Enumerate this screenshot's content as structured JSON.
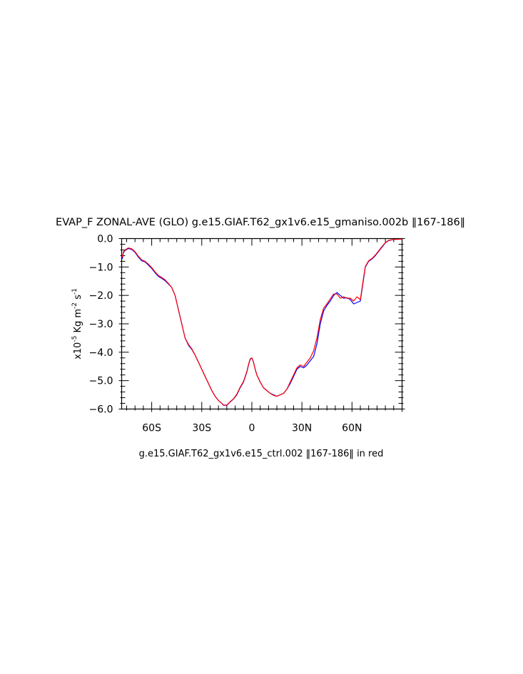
{
  "chart_data": {
    "type": "line",
    "title": "EVAP_F ZONAL-AVE (GLO) g.e15.GIAF.T62_gx1v6.e15_gmaniso.002b ‖167-186‖",
    "subtitle": "g.e15.GIAF.T62_gx1v6.e15_ctrl.002 ‖167-186‖ in red",
    "ylabel": {
      "prefix": "x10",
      "exp1": "-5",
      "mid": " Kg m",
      "exp2": "-2",
      "mid2": " s",
      "exp3": "-1"
    },
    "xlim": [
      -78,
      90
    ],
    "ylim": [
      -6.0,
      0.0
    ],
    "xticks": [
      {
        "value": -60,
        "label": "60S"
      },
      {
        "value": -30,
        "label": "30S"
      },
      {
        "value": 0,
        "label": "0"
      },
      {
        "value": 30,
        "label": "30N"
      },
      {
        "value": 60,
        "label": "60N"
      }
    ],
    "yticks": [
      {
        "value": 0.0,
        "label": "0.0"
      },
      {
        "value": -1.0,
        "label": "-1.0"
      },
      {
        "value": -2.0,
        "label": "-2.0"
      },
      {
        "value": -3.0,
        "label": "-3.0"
      },
      {
        "value": -4.0,
        "label": "-4.0"
      },
      {
        "value": -5.0,
        "label": "-5.0"
      },
      {
        "value": -6.0,
        "label": "-6.0"
      }
    ],
    "series": [
      {
        "color": "#0000ff",
        "points": [
          [
            -78,
            -0.65
          ],
          [
            -77.5,
            -0.7
          ],
          [
            -77,
            -0.5
          ],
          [
            -76,
            -0.42
          ],
          [
            -74,
            -0.35
          ],
          [
            -72,
            -0.38
          ],
          [
            -70,
            -0.48
          ],
          [
            -68,
            -0.65
          ],
          [
            -66,
            -0.78
          ],
          [
            -64,
            -0.82
          ],
          [
            -62,
            -0.93
          ],
          [
            -60,
            -1.05
          ],
          [
            -58,
            -1.2
          ],
          [
            -56,
            -1.33
          ],
          [
            -54,
            -1.4
          ],
          [
            -52,
            -1.48
          ],
          [
            -50,
            -1.6
          ],
          [
            -48,
            -1.72
          ],
          [
            -46,
            -2.0
          ],
          [
            -44,
            -2.5
          ],
          [
            -42,
            -3.0
          ],
          [
            -40,
            -3.5
          ],
          [
            -38,
            -3.75
          ],
          [
            -36,
            -3.9
          ],
          [
            -34,
            -4.1
          ],
          [
            -32,
            -4.35
          ],
          [
            -30,
            -4.6
          ],
          [
            -28,
            -4.85
          ],
          [
            -26,
            -5.1
          ],
          [
            -24,
            -5.35
          ],
          [
            -22,
            -5.55
          ],
          [
            -20,
            -5.7
          ],
          [
            -18,
            -5.8
          ],
          [
            -17,
            -5.87
          ],
          [
            -15,
            -5.87
          ],
          [
            -13,
            -5.75
          ],
          [
            -11,
            -5.65
          ],
          [
            -9,
            -5.5
          ],
          [
            -7,
            -5.25
          ],
          [
            -5,
            -5.05
          ],
          [
            -3,
            -4.7
          ],
          [
            -2,
            -4.45
          ],
          [
            -1,
            -4.25
          ],
          [
            0,
            -4.2
          ],
          [
            1,
            -4.35
          ],
          [
            2,
            -4.6
          ],
          [
            3,
            -4.8
          ],
          [
            5,
            -5.05
          ],
          [
            7,
            -5.25
          ],
          [
            9,
            -5.35
          ],
          [
            11,
            -5.45
          ],
          [
            13,
            -5.5
          ],
          [
            15,
            -5.55
          ],
          [
            17,
            -5.5
          ],
          [
            19,
            -5.45
          ],
          [
            21,
            -5.3
          ],
          [
            23,
            -5.1
          ],
          [
            25,
            -4.85
          ],
          [
            27,
            -4.6
          ],
          [
            29,
            -4.5
          ],
          [
            31,
            -4.55
          ],
          [
            33,
            -4.45
          ],
          [
            35,
            -4.3
          ],
          [
            37,
            -4.15
          ],
          [
            39,
            -3.7
          ],
          [
            41,
            -3.0
          ],
          [
            43,
            -2.55
          ],
          [
            45,
            -2.35
          ],
          [
            47,
            -2.2
          ],
          [
            49,
            -2.0
          ],
          [
            51,
            -1.9
          ],
          [
            53,
            -2.0
          ],
          [
            55,
            -2.1
          ],
          [
            57,
            -2.08
          ],
          [
            59,
            -2.15
          ],
          [
            61,
            -2.3
          ],
          [
            63,
            -2.25
          ],
          [
            65,
            -2.2
          ],
          [
            66,
            -1.8
          ],
          [
            67,
            -1.4
          ],
          [
            68,
            -1.0
          ],
          [
            70,
            -0.8
          ],
          [
            72,
            -0.72
          ],
          [
            74,
            -0.6
          ],
          [
            76,
            -0.45
          ],
          [
            78,
            -0.3
          ],
          [
            80,
            -0.15
          ],
          [
            82,
            -0.07
          ],
          [
            85,
            -0.03
          ],
          [
            90,
            -0.02
          ]
        ]
      },
      {
        "color": "#ff0000",
        "points": [
          [
            -78,
            -0.6
          ],
          [
            -77.5,
            -0.65
          ],
          [
            -77,
            -0.47
          ],
          [
            -76,
            -0.4
          ],
          [
            -74,
            -0.33
          ],
          [
            -72,
            -0.36
          ],
          [
            -70,
            -0.46
          ],
          [
            -68,
            -0.62
          ],
          [
            -66,
            -0.75
          ],
          [
            -64,
            -0.8
          ],
          [
            -62,
            -0.9
          ],
          [
            -60,
            -1.02
          ],
          [
            -58,
            -1.17
          ],
          [
            -56,
            -1.3
          ],
          [
            -54,
            -1.37
          ],
          [
            -52,
            -1.45
          ],
          [
            -50,
            -1.58
          ],
          [
            -48,
            -1.72
          ],
          [
            -46,
            -2.0
          ],
          [
            -44,
            -2.5
          ],
          [
            -42,
            -3.0
          ],
          [
            -40,
            -3.5
          ],
          [
            -38,
            -3.72
          ],
          [
            -36,
            -3.88
          ],
          [
            -34,
            -4.1
          ],
          [
            -32,
            -4.35
          ],
          [
            -30,
            -4.6
          ],
          [
            -28,
            -4.85
          ],
          [
            -26,
            -5.1
          ],
          [
            -24,
            -5.35
          ],
          [
            -22,
            -5.55
          ],
          [
            -20,
            -5.7
          ],
          [
            -18,
            -5.8
          ],
          [
            -17,
            -5.86
          ],
          [
            -15,
            -5.86
          ],
          [
            -13,
            -5.74
          ],
          [
            -11,
            -5.64
          ],
          [
            -9,
            -5.48
          ],
          [
            -7,
            -5.23
          ],
          [
            -5,
            -5.03
          ],
          [
            -3,
            -4.68
          ],
          [
            -2,
            -4.43
          ],
          [
            -1,
            -4.23
          ],
          [
            0,
            -4.2
          ],
          [
            1,
            -4.35
          ],
          [
            2,
            -4.6
          ],
          [
            3,
            -4.8
          ],
          [
            5,
            -5.05
          ],
          [
            7,
            -5.25
          ],
          [
            9,
            -5.35
          ],
          [
            11,
            -5.45
          ],
          [
            13,
            -5.52
          ],
          [
            15,
            -5.55
          ],
          [
            17,
            -5.5
          ],
          [
            19,
            -5.45
          ],
          [
            21,
            -5.3
          ],
          [
            23,
            -5.05
          ],
          [
            25,
            -4.8
          ],
          [
            27,
            -4.55
          ],
          [
            29,
            -4.45
          ],
          [
            31,
            -4.5
          ],
          [
            33,
            -4.35
          ],
          [
            35,
            -4.2
          ],
          [
            37,
            -3.95
          ],
          [
            39,
            -3.5
          ],
          [
            41,
            -2.85
          ],
          [
            43,
            -2.45
          ],
          [
            45,
            -2.3
          ],
          [
            47,
            -2.12
          ],
          [
            49,
            -1.95
          ],
          [
            51,
            -1.95
          ],
          [
            53,
            -2.1
          ],
          [
            55,
            -2.05
          ],
          [
            57,
            -2.1
          ],
          [
            59,
            -2.1
          ],
          [
            61,
            -2.2
          ],
          [
            63,
            -2.05
          ],
          [
            65,
            -2.15
          ],
          [
            66,
            -1.75
          ],
          [
            67,
            -1.35
          ],
          [
            68,
            -0.98
          ],
          [
            70,
            -0.78
          ],
          [
            72,
            -0.7
          ],
          [
            74,
            -0.58
          ],
          [
            76,
            -0.43
          ],
          [
            78,
            -0.28
          ],
          [
            80,
            -0.14
          ],
          [
            82,
            -0.06
          ],
          [
            85,
            -0.03
          ],
          [
            90,
            -0.02
          ]
        ]
      }
    ]
  }
}
